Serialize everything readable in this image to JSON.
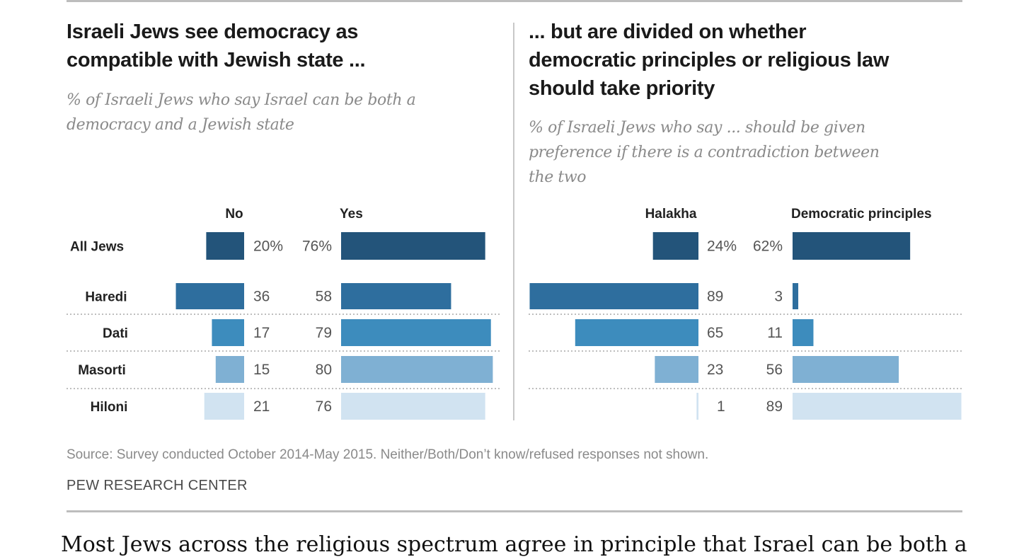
{
  "chart_data": [
    {
      "type": "bar",
      "orientation": "horizontal-diverging",
      "title": "Israeli Jews see democracy as compatible with Jewish state ...",
      "subtitle": "% of Israeli Jews who say Israel can be both a democracy and a Jewish state",
      "categories": [
        "All Jews",
        "Haredi",
        "Dati",
        "Masorti",
        "Hiloni"
      ],
      "series": [
        {
          "name": "No",
          "values": [
            20,
            36,
            17,
            15,
            21
          ],
          "labels": [
            "20%",
            "36",
            "17",
            "15",
            "21"
          ]
        },
        {
          "name": "Yes",
          "values": [
            76,
            58,
            79,
            80,
            76
          ],
          "labels": [
            "76%",
            "58",
            "79",
            "80",
            "76"
          ]
        }
      ],
      "xlim": [
        0,
        100
      ],
      "grid": false
    },
    {
      "type": "bar",
      "orientation": "horizontal-diverging",
      "title": "... but are divided on whether democratic principles or religious law should take priority",
      "subtitle": "% of Israeli Jews who say ... should be given preference if there is a contradiction between the two",
      "categories": [
        "All Jews",
        "Haredi",
        "Dati",
        "Masorti",
        "Hiloni"
      ],
      "series": [
        {
          "name": "Halakha",
          "values": [
            24,
            89,
            65,
            23,
            1
          ],
          "labels": [
            "24%",
            "89",
            "65",
            "23",
            "1"
          ]
        },
        {
          "name": "Democratic principles",
          "values": [
            62,
            3,
            11,
            56,
            89
          ],
          "labels": [
            "62%",
            "3",
            "11",
            "56",
            "89"
          ]
        }
      ],
      "xlim": [
        0,
        100
      ],
      "grid": false
    }
  ],
  "colors": {
    "All Jews": "#23547a",
    "Haredi": "#2e6e9e",
    "Dati": "#3d8cbd",
    "Masorti": "#7fb0d3",
    "Hiloni": "#d1e3f1"
  },
  "left_panel": {
    "title_lines": [
      "Israeli Jews see democracy as",
      "compatible with Jewish state ..."
    ],
    "subtitle_lines": [
      "% of Israeli Jews who say Israel can be both a",
      "democracy and a Jewish state"
    ]
  },
  "right_panel": {
    "title_lines": [
      "... but are divided on whether",
      "democratic principles or religious law",
      "should take priority"
    ],
    "subtitle_lines": [
      "% of Israeli Jews who say ... should be given",
      "preference if there is a contradiction between",
      "the two"
    ]
  },
  "footer": {
    "source": "Source: Survey conducted October 2014-May 2015. Neither/Both/Don’t know/refused responses not shown.",
    "credit": "PEW RESEARCH CENTER"
  },
  "body_text": "Most Jews across the religious spectrum agree in principle that Israel can be both a"
}
